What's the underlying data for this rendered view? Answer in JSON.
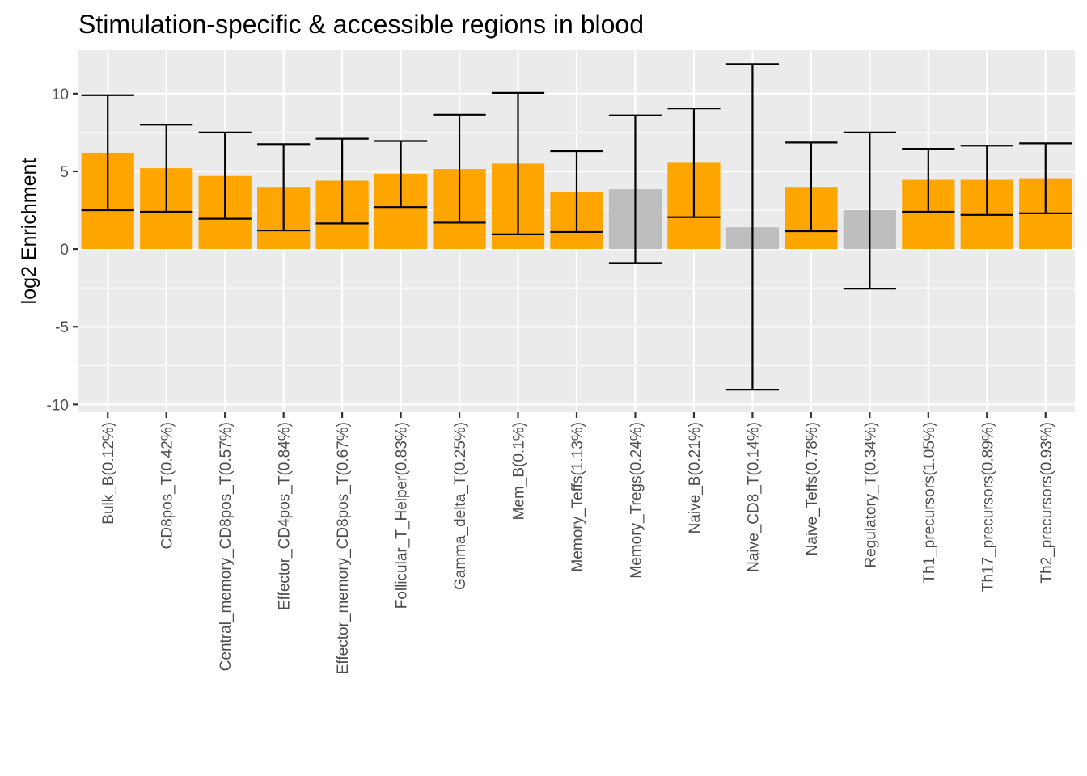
{
  "chart_data": {
    "type": "bar",
    "title": "Stimulation-specific & accessible regions in blood",
    "xlabel": "",
    "ylabel": "log2 Enrichment",
    "ylim": [
      -10.5,
      12.8
    ],
    "yticks": [
      -10,
      -5,
      0,
      5,
      10
    ],
    "ytick_labels": [
      "-10",
      "-5",
      "0",
      "5",
      "10"
    ],
    "grid": true,
    "categories": [
      "Bulk_B(0.12%)",
      "CD8pos_T(0.42%)",
      "Central_memory_CD8pos_T(0.57%)",
      "Effector_CD4pos_T(0.84%)",
      "Effector_memory_CD8pos_T(0.67%)",
      "Follicular_T_Helper(0.83%)",
      "Gamma_delta_T(0.25%)",
      "Mem_B(0.1%)",
      "Memory_Teffs(1.13%)",
      "Memory_Tregs(0.24%)",
      "Naive_B(0.21%)",
      "Naive_CD8_T(0.14%)",
      "Naive_Teffs(0.78%)",
      "Regulatory_T(0.34%)",
      "Th1_precursors(1.05%)",
      "Th17_precursors(0.89%)",
      "Th2_precursors(0.93%)"
    ],
    "values": [
      6.2,
      5.2,
      4.7,
      4.0,
      4.4,
      4.85,
      5.15,
      5.5,
      3.7,
      3.85,
      5.55,
      1.4,
      4.0,
      2.5,
      4.45,
      4.45,
      4.55
    ],
    "err_low": [
      2.5,
      2.4,
      1.95,
      1.2,
      1.65,
      2.7,
      1.7,
      0.95,
      1.1,
      -0.9,
      2.05,
      -9.05,
      1.15,
      -2.55,
      2.4,
      2.2,
      2.3
    ],
    "err_high": [
      9.9,
      8.0,
      7.5,
      6.75,
      7.1,
      6.95,
      8.65,
      10.05,
      6.3,
      8.6,
      9.05,
      11.9,
      6.85,
      7.5,
      6.45,
      6.65,
      6.8
    ],
    "significant": [
      true,
      true,
      true,
      true,
      true,
      true,
      true,
      true,
      true,
      false,
      true,
      false,
      true,
      false,
      true,
      true,
      true
    ],
    "colors": {
      "significant": "#FFA500",
      "not_significant": "#BEBEBE",
      "panel_background": "#EBEBEB",
      "grid": "#FFFFFF",
      "errorbar": "#000000"
    }
  }
}
